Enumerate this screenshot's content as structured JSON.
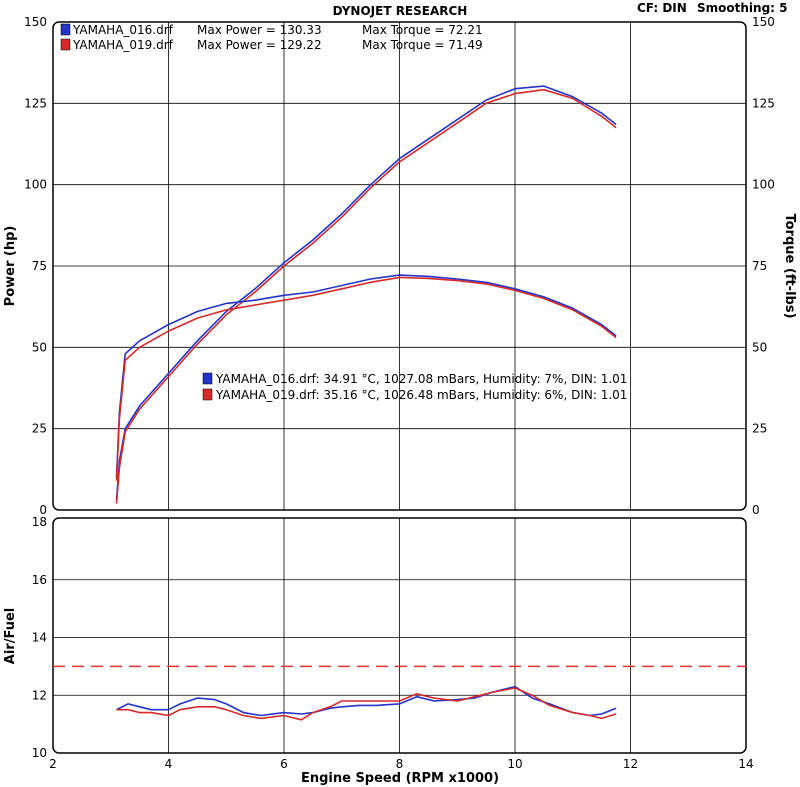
{
  "header": {
    "title": "DYNOJET RESEARCH",
    "correction": "CF: DIN",
    "smoothing": "Smoothing: 5"
  },
  "colors": {
    "run_016": "#2433c8",
    "run_019": "#d42a2a",
    "grid": "#000000",
    "target_line": "#e03030"
  },
  "chart_data": [
    {
      "type": "line",
      "title": "DYNOJET RESEARCH",
      "xlabel": "Engine Speed (RPM x1000)",
      "ylabel": "Power (hp)",
      "y2label": "Torque (ft-lbs)",
      "xlim": [
        2,
        14
      ],
      "ylim": [
        0,
        150
      ],
      "y2lim": [
        0,
        150
      ],
      "xticks": [
        "2",
        "4",
        "6",
        "8",
        "10",
        "12",
        "14"
      ],
      "yticks": [
        "0",
        "25",
        "50",
        "75",
        "100",
        "125",
        "150"
      ],
      "y2ticks": [
        "0",
        "25",
        "50",
        "75",
        "100",
        "125",
        "150"
      ],
      "grid": true,
      "legend_top": [
        {
          "run": "YAMAHA_016.drf",
          "power": "Max Power = 130.33",
          "torque": "Max Torque = 72.21",
          "color": "#2433c8"
        },
        {
          "run": "YAMAHA_019.drf",
          "power": "Max Power = 129.22",
          "torque": "Max Torque = 71.49",
          "color": "#d42a2a"
        }
      ],
      "legend_conditions": [
        {
          "text": "YAMAHA_016.drf: 34.91 °C, 1027.08 mBars, Humidity: 7%, DIN: 1.01",
          "color": "#2433c8"
        },
        {
          "text": "YAMAHA_019.drf: 35.16 °C, 1026.48 mBars, Humidity: 6%, DIN: 1.01",
          "color": "#d42a2a"
        }
      ],
      "series": [
        {
          "name": "YAMAHA_016.drf",
          "measure": "power",
          "color": "#2433c8",
          "x": [
            3.1,
            3.15,
            3.25,
            3.5,
            4.0,
            4.5,
            5.0,
            5.5,
            6.0,
            6.5,
            7.0,
            7.5,
            8.0,
            8.5,
            9.0,
            9.5,
            10.0,
            10.5,
            11.0,
            11.5,
            11.75
          ],
          "y": [
            3,
            15,
            25,
            32,
            42,
            52,
            61,
            68,
            76,
            83,
            91,
            100,
            108,
            114,
            120,
            126,
            129.5,
            130.3,
            127,
            122,
            118.5
          ]
        },
        {
          "name": "YAMAHA_019.drf",
          "measure": "power",
          "color": "#d42a2a",
          "x": [
            3.1,
            3.15,
            3.25,
            3.5,
            4.0,
            4.5,
            5.0,
            5.5,
            6.0,
            6.5,
            7.0,
            7.5,
            8.0,
            8.5,
            9.0,
            9.5,
            10.0,
            10.5,
            11.0,
            11.5,
            11.75
          ],
          "y": [
            2,
            13,
            24,
            31,
            41,
            51,
            60,
            67,
            75,
            82,
            90,
            99,
            107,
            113,
            119,
            125,
            128,
            129.2,
            126.5,
            121,
            117.5
          ]
        },
        {
          "name": "YAMAHA_016.drf",
          "measure": "torque",
          "color": "#2433c8",
          "x": [
            3.1,
            3.15,
            3.25,
            3.5,
            4.0,
            4.5,
            5.0,
            5.5,
            6.0,
            6.5,
            7.0,
            7.5,
            8.0,
            8.5,
            9.0,
            9.5,
            10.0,
            10.5,
            11.0,
            11.5,
            11.75
          ],
          "y": [
            10,
            30,
            48,
            52,
            57,
            61,
            63.5,
            64.5,
            66,
            67,
            69,
            71,
            72.2,
            71.8,
            71,
            70,
            68,
            65.5,
            62,
            57,
            53.5
          ]
        },
        {
          "name": "YAMAHA_019.drf",
          "measure": "torque",
          "color": "#d42a2a",
          "x": [
            3.1,
            3.15,
            3.25,
            3.5,
            4.0,
            4.5,
            5.0,
            5.5,
            6.0,
            6.5,
            7.0,
            7.5,
            8.0,
            8.5,
            9.0,
            9.5,
            10.0,
            10.5,
            11.0,
            11.5,
            11.75
          ],
          "y": [
            9,
            28,
            46,
            50,
            55,
            59,
            61.5,
            63,
            64.5,
            66,
            68,
            70,
            71.5,
            71.2,
            70.5,
            69.5,
            67.5,
            65,
            61.5,
            56.5,
            53
          ]
        }
      ]
    },
    {
      "type": "line",
      "xlabel": "Engine Speed (RPM x1000)",
      "ylabel": "Air/Fuel",
      "xlim": [
        2,
        14
      ],
      "ylim": [
        10,
        18
      ],
      "xticks": [
        "2",
        "4",
        "6",
        "8",
        "10",
        "12",
        "14"
      ],
      "yticks": [
        "10",
        "12",
        "14",
        "16",
        "18"
      ],
      "grid": true,
      "reference_line": {
        "y": 13,
        "style": "dashed",
        "color": "#e03030"
      },
      "series": [
        {
          "name": "YAMAHA_016.drf",
          "color": "#2433c8",
          "x": [
            3.1,
            3.3,
            3.5,
            3.7,
            4.0,
            4.2,
            4.5,
            4.8,
            5.0,
            5.3,
            5.6,
            6.0,
            6.3,
            6.5,
            6.8,
            7.0,
            7.3,
            7.6,
            8.0,
            8.3,
            8.6,
            9.0,
            9.3,
            9.6,
            10.0,
            10.3,
            10.6,
            11.0,
            11.3,
            11.5,
            11.75
          ],
          "y": [
            11.5,
            11.7,
            11.6,
            11.5,
            11.5,
            11.7,
            11.9,
            11.85,
            11.7,
            11.4,
            11.3,
            11.4,
            11.35,
            11.4,
            11.55,
            11.6,
            11.65,
            11.65,
            11.7,
            11.95,
            11.8,
            11.85,
            11.9,
            12.1,
            12.3,
            11.9,
            11.7,
            11.4,
            11.3,
            11.35,
            11.55
          ]
        },
        {
          "name": "YAMAHA_019.drf",
          "color": "#d42a2a",
          "x": [
            3.1,
            3.3,
            3.5,
            3.7,
            4.0,
            4.2,
            4.5,
            4.8,
            5.0,
            5.3,
            5.6,
            6.0,
            6.3,
            6.5,
            6.8,
            7.0,
            7.3,
            7.6,
            8.0,
            8.3,
            8.6,
            9.0,
            9.3,
            9.6,
            10.0,
            10.3,
            10.6,
            11.0,
            11.3,
            11.5,
            11.75
          ],
          "y": [
            11.5,
            11.5,
            11.4,
            11.4,
            11.3,
            11.5,
            11.6,
            11.6,
            11.5,
            11.3,
            11.2,
            11.3,
            11.15,
            11.4,
            11.6,
            11.8,
            11.8,
            11.8,
            11.8,
            12.05,
            11.9,
            11.8,
            11.95,
            12.1,
            12.25,
            12.0,
            11.65,
            11.4,
            11.3,
            11.2,
            11.35
          ]
        }
      ]
    }
  ]
}
